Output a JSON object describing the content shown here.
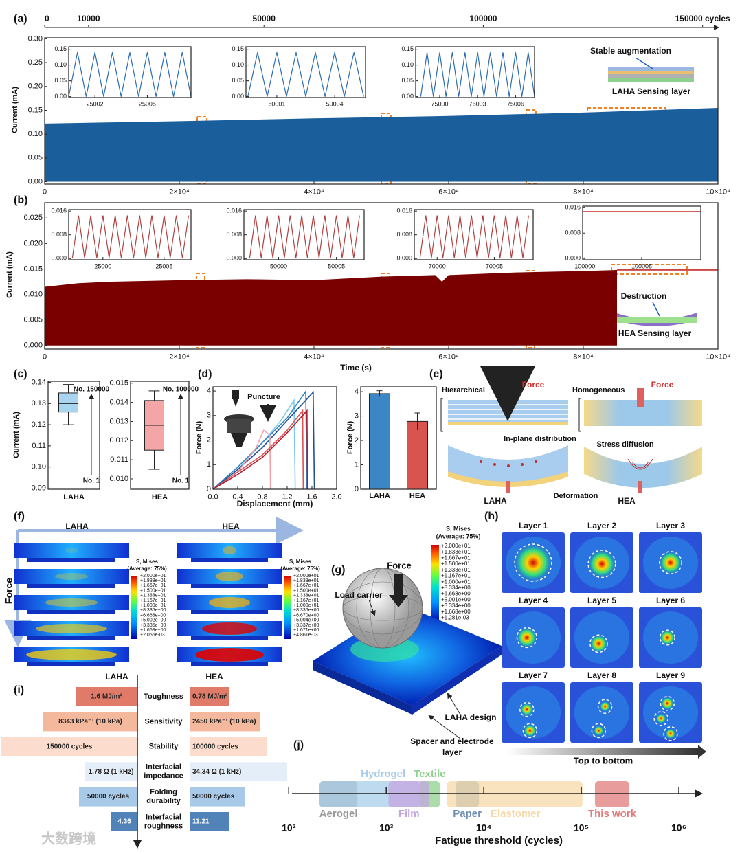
{
  "chart_data": [
    {
      "type": "area",
      "label": "(a)",
      "ylabel": "Current (mA)",
      "xlim": [
        0,
        100000
      ],
      "xticks": [
        0,
        {
          "value": 20000,
          "label": "2×10⁴"
        },
        {
          "value": 40000,
          "label": "4×10⁴"
        },
        {
          "value": 60000,
          "label": "6×10⁴"
        },
        {
          "value": 80000,
          "label": "8×10⁴"
        },
        {
          "value": 100000,
          "label": "10×10⁴"
        }
      ],
      "x2lim": [
        0,
        153500
      ],
      "x2ticks": [
        0,
        10000,
        50000,
        100000,
        {
          "value": 150000,
          "label": "150000 cycles"
        }
      ],
      "ylim": [
        -0.005,
        0.302
      ],
      "yticks": [
        {
          "value": 0,
          "label": "0.00"
        },
        0.05,
        {
          "value": 0.1,
          "label": "0.10"
        },
        0.15,
        {
          "value": 0.2,
          "label": "0.20"
        },
        0.25,
        {
          "value": 0.3,
          "label": "0.30"
        }
      ],
      "series": [
        {
          "color": "#1b5e9c",
          "x": [
            0,
            20000,
            40000,
            60000,
            80000,
            100000
          ],
          "values": [
            0.122,
            0.127,
            0.133,
            0.138,
            0.145,
            0.155
          ]
        }
      ],
      "annotations": [
        "Stable augmentation",
        "LAHA Sensing layer"
      ]
    },
    {
      "type": "area",
      "label": "(b)",
      "ylabel": "Current (mA)",
      "xlabel": "Time (s)",
      "xlim": [
        0,
        100000
      ],
      "xticks": [
        0,
        {
          "value": 20000,
          "label": "2×10⁴"
        },
        {
          "value": 40000,
          "label": "4×10⁴"
        },
        {
          "value": 60000,
          "label": "6×10⁴"
        },
        {
          "value": 80000,
          "label": "8×10⁴"
        },
        {
          "value": 100000,
          "label": "10×10⁴"
        }
      ],
      "ylim": [
        -0.0007,
        0.028
      ],
      "yticks": [
        {
          "value": 0,
          "label": "0.000"
        },
        0.005,
        {
          "value": 0.01,
          "label": "0.010"
        },
        0.015,
        {
          "value": 0.02,
          "label": "0.020"
        },
        0.025
      ],
      "series": [
        {
          "color": "#7a0000",
          "x": [
            0,
            5000,
            10000,
            20000,
            30000,
            40000,
            50000,
            58000,
            59000,
            60000,
            70000,
            80000,
            85000
          ],
          "values": [
            0.0115,
            0.0122,
            0.0125,
            0.0128,
            0.013,
            0.0128,
            0.0135,
            0.0138,
            0.0125,
            0.0138,
            0.0143,
            0.0146,
            0.0148
          ]
        },
        {
          "color": "#c62828",
          "style": "line",
          "x": [
            85000,
            100000
          ],
          "values": [
            0.0148,
            0.0148
          ]
        }
      ],
      "annotations": [
        "Destruction",
        "HEA Sensing layer"
      ]
    },
    {
      "type": "line",
      "xlim": [
        25000.5,
        25007.5
      ],
      "xticks": [
        25002,
        25005
      ],
      "ylim": [
        -0.003,
        0.158
      ],
      "yticks": [
        {
          "value": 0,
          "label": "0.00"
        },
        0.05,
        {
          "value": 0.1,
          "label": "0.10"
        },
        0.15
      ],
      "series": [
        {
          "color": "#2b6cb0",
          "x": [
            25000.5,
            25001,
            25001.5,
            25002,
            25002.5,
            25003,
            25003.5,
            25004,
            25004.5,
            25005,
            25005.5,
            25006,
            25006.5,
            25007,
            25007.5
          ],
          "values": [
            0,
            0.14,
            0,
            0.14,
            0,
            0.14,
            0,
            0.14,
            0,
            0.14,
            0,
            0.14,
            0,
            0.14,
            0
          ]
        }
      ]
    },
    {
      "type": "line",
      "xlim": [
        49999.4,
        50005.6
      ],
      "xticks": [
        50001,
        50004
      ],
      "ylim": [
        -0.003,
        0.158
      ],
      "yticks": [
        {
          "value": 0,
          "label": "0.00"
        },
        0.05,
        {
          "value": 0.1,
          "label": "0.10"
        },
        0.15
      ],
      "series": [
        {
          "color": "#2b6cb0",
          "x": [
            49999.5,
            50000,
            50000.5,
            50001,
            50001.5,
            50002,
            50002.5,
            50003,
            50003.5,
            50004,
            50004.5,
            50005,
            50005.5
          ],
          "values": [
            0,
            0.14,
            0,
            0.14,
            0,
            0.14,
            0,
            0.14,
            0,
            0.14,
            0,
            0.14,
            0
          ]
        }
      ]
    },
    {
      "type": "line",
      "xlim": [
        74998.1,
        75007.5
      ],
      "xticks": [
        75000,
        75003,
        75006
      ],
      "ylim": [
        -0.003,
        0.158
      ],
      "yticks": [
        {
          "value": 0,
          "label": "0.00"
        },
        0.05,
        {
          "value": 0.1,
          "label": "0.10"
        },
        0.15
      ],
      "series": [
        {
          "color": "#2b6cb0",
          "x": [
            74998.5,
            74999,
            74999.5,
            75000,
            75000.5,
            75001,
            75001.5,
            75002,
            75002.5,
            75003,
            75003.5,
            75004,
            75004.5,
            75005,
            75005.5,
            75006,
            75006.5,
            75007,
            75007.5
          ],
          "values": [
            0,
            0.14,
            0,
            0.14,
            0,
            0.14,
            0,
            0.14,
            0,
            0.14,
            0,
            0.14,
            0,
            0.14,
            0,
            0.14,
            0,
            0.14,
            0
          ]
        }
      ]
    },
    {
      "type": "line",
      "xlim": [
        24997.2,
        25007.2
      ],
      "xticks": [
        25000,
        25005
      ],
      "ylim": [
        -0.0004,
        0.0165
      ],
      "yticks": [
        {
          "value": 0,
          "label": "0.000"
        },
        0.008,
        0.016
      ],
      "series": [
        {
          "color": "#b04040",
          "x": [
            24997.5,
            24998,
            24998.5,
            24999,
            24999.5,
            25000,
            25000.5,
            25001,
            25001.5,
            25002,
            25002.5,
            25003,
            25003.5,
            25004,
            25004.5,
            25005,
            25005.5,
            25006,
            25006.5,
            25007
          ],
          "values": [
            0.0002,
            0.0145,
            0.0002,
            0.0145,
            0.0002,
            0.0145,
            0.0002,
            0.0145,
            0.0002,
            0.0145,
            0.0002,
            0.0145,
            0.0002,
            0.0145,
            0.0002,
            0.0145,
            0.0002,
            0.0145,
            0.0002,
            0.0145
          ]
        }
      ]
    },
    {
      "type": "line",
      "xlim": [
        49997,
        50007.4
      ],
      "xticks": [
        50000,
        50005
      ],
      "ylim": [
        -0.0004,
        0.0165
      ],
      "yticks": [
        {
          "value": 0,
          "label": "0.000"
        },
        0.008,
        0.016
      ],
      "series": [
        {
          "color": "#b04040",
          "x": [
            49997.5,
            49998,
            49998.5,
            49999,
            49999.5,
            50000,
            50000.5,
            50001,
            50001.5,
            50002,
            50002.5,
            50003,
            50003.5,
            50004,
            50004.5,
            50005,
            50005.5,
            50006,
            50006.5,
            50007
          ],
          "values": [
            0.0002,
            0.0145,
            0.0002,
            0.0145,
            0.0002,
            0.0145,
            0.0002,
            0.0145,
            0.0002,
            0.0145,
            0.0002,
            0.0145,
            0.0002,
            0.0145,
            0.0002,
            0.0145,
            0.0002,
            0.0145,
            0.0002,
            0.0145
          ]
        }
      ]
    },
    {
      "type": "line",
      "xlim": [
        69998,
        70008.4
      ],
      "xticks": [
        70000,
        70005
      ],
      "ylim": [
        -0.0004,
        0.0165
      ],
      "yticks": [
        {
          "value": 0,
          "label": "0.000"
        },
        0.008,
        0.016
      ],
      "series": [
        {
          "color": "#b04040",
          "x": [
            69998.5,
            69999,
            69999.5,
            70000,
            70000.5,
            70001,
            70001.5,
            70002,
            70002.5,
            70003,
            70003.5,
            70004,
            70004.5,
            70005,
            70005.5,
            70006,
            70006.5,
            70007,
            70007.5,
            70008
          ],
          "values": [
            0.0002,
            0.0145,
            0.0002,
            0.0145,
            0.0002,
            0.0145,
            0.0002,
            0.0145,
            0.0002,
            0.0145,
            0.0002,
            0.0145,
            0.0002,
            0.0145,
            0.0002,
            0.0145,
            0.0002,
            0.0145,
            0.0002,
            0.0145
          ]
        }
      ]
    },
    {
      "type": "line",
      "xlim": [
        99999.8,
        100010.2
      ],
      "xticks": [
        100000,
        100005
      ],
      "ylim": [
        -0.0004,
        0.0165
      ],
      "yticks": [
        {
          "value": 0,
          "label": "0.000"
        },
        0.008,
        0.016
      ],
      "series": [
        {
          "color": "#c62828",
          "x": [
            99999.8,
            100010.2
          ],
          "values": [
            0.0148,
            0.0148
          ]
        }
      ]
    },
    {
      "type": "box",
      "label": "(c)",
      "ylabel": "Current (mA)",
      "category": "LAHA",
      "color": "#a8d4f0",
      "ylim": [
        0.0895,
        0.1405
      ],
      "yticks": [
        0.09,
        {
          "value": 0.1,
          "label": "0.10"
        },
        0.11,
        0.12,
        0.13,
        0.14
      ],
      "whisker_low": 0.12,
      "q1": 0.126,
      "median": 0.13,
      "q3": 0.135,
      "whisker_high": 0.139,
      "annotations": [
        "No. 150000",
        "No. 1"
      ]
    },
    {
      "type": "box",
      "category": "HEA",
      "color": "#f4a6a6",
      "ylim": [
        0.00946,
        0.0151
      ],
      "yticks": [
        {
          "value": 0.01,
          "label": "0.010"
        },
        0.011,
        0.012,
        0.013,
        0.014,
        0.015
      ],
      "whisker_low": 0.0105,
      "q1": 0.0115,
      "median": 0.0128,
      "q3": 0.0141,
      "whisker_high": 0.0146,
      "annotations": [
        "No. 100000",
        "No. 1"
      ]
    },
    {
      "type": "line",
      "label": "(d)",
      "xlabel": "Displacement (mm)",
      "ylabel": "Force (N)",
      "annotation": "Puncture",
      "xlim": [
        0,
        2.0
      ],
      "xticks": [
        {
          "value": 0,
          "label": "0.0"
        },
        0.4,
        0.8,
        1.2,
        1.6,
        {
          "value": 2,
          "label": "2.0"
        }
      ],
      "ylim": [
        0,
        4.17
      ],
      "yticks": [
        0,
        1,
        2,
        3,
        4
      ],
      "series": [
        {
          "color": "#7ec8ec",
          "x": [
            0,
            0.4,
            0.8,
            1.1,
            1.31,
            1.33
          ],
          "values": [
            0,
            0.8,
            1.9,
            2.8,
            3.62,
            0
          ]
        },
        {
          "color": "#2f86c8",
          "x": [
            0,
            0.4,
            0.8,
            1.2,
            1.5,
            1.52
          ],
          "values": [
            0,
            0.9,
            1.9,
            2.9,
            3.98,
            0
          ]
        },
        {
          "color": "#1f4f9a",
          "x": [
            0,
            0.4,
            0.8,
            1.2,
            1.62,
            1.64
          ],
          "values": [
            0,
            0.8,
            1.7,
            2.8,
            3.95,
            0
          ]
        },
        {
          "color": "#f2a0a8",
          "x": [
            0,
            0.4,
            0.7,
            0.82,
            0.92,
            0.93
          ],
          "values": [
            0,
            0.7,
            1.7,
            2.4,
            2.2,
            0
          ]
        },
        {
          "color": "#e05050",
          "x": [
            0,
            0.4,
            0.8,
            1.2,
            1.45,
            1.46
          ],
          "values": [
            0,
            0.7,
            1.4,
            2.4,
            3.2,
            0
          ]
        },
        {
          "color": "#b01c2e",
          "x": [
            0,
            0.4,
            0.8,
            1.2,
            1.52,
            1.53
          ],
          "values": [
            0,
            0.6,
            1.3,
            2.3,
            3.2,
            0
          ]
        }
      ]
    },
    {
      "type": "bar",
      "ylabel": "Force (N)",
      "categories": [
        "LAHA",
        "HEA"
      ],
      "values": [
        3.92,
        2.78
      ],
      "errors": [
        0.12,
        0.35
      ],
      "colors": [
        "#3d86c6",
        "#d9534f"
      ],
      "ylim": [
        0,
        4.2
      ],
      "yticks": [
        0,
        1,
        2,
        3,
        4
      ]
    },
    {
      "type": "range",
      "label": "(j)",
      "xlabel": "Fatigue threshold (cycles)",
      "log": true,
      "xlim": [
        108,
        1680000
      ],
      "xticks": [
        {
          "value": 100,
          "label": "10²"
        },
        {
          "value": 1000,
          "label": "10³"
        },
        {
          "value": 10000,
          "label": "10⁴"
        },
        {
          "value": 100000,
          "label": "10⁵"
        },
        {
          "value": 1000000,
          "label": "10⁶"
        }
      ],
      "categories": [
        "Aerogel",
        "Hydrogel",
        "Textile",
        "Film",
        "Paper",
        "Elastomer",
        "This work"
      ],
      "start": [
        207,
        207,
        2180,
        1055,
        5140,
        4170,
        138000
      ],
      "end": [
        506,
        2180,
        3550,
        2770,
        8930,
        103000,
        311000
      ],
      "colors": [
        "#9a9a9a",
        "#a8cde8",
        "#8fd18f",
        "#c3a6e0",
        "#6f8fb5",
        "#f6d9a8",
        "#e07b7b"
      ]
    }
  ],
  "panels": {
    "e": {
      "label": "(e)",
      "hierarchical": "Hierarchical",
      "homogeneous": "Homogeneous",
      "force_left": "Force",
      "force_right": "Force",
      "in_plane": "In-plane distribution",
      "stress": "Stress diffusion",
      "laha": "LAHA",
      "deformation": "Deformation",
      "hea": "HEA"
    },
    "f": {
      "label": "(f)",
      "laha": "LAHA",
      "hea": "HEA",
      "force": "Force",
      "legend_left": {
        "title": "S, Mises",
        "subtitle": "(Average: 75%)",
        "levels": [
          "+2.000e+01",
          "+1.833e+01",
          "+1.667e+01",
          "+1.500e+01",
          "+1.333e+01",
          "+1.167e+01",
          "+1.000e+01",
          "+8.335e+00",
          "+6.668e+00",
          "+5.002e+00",
          "+3.335e+00",
          "+1.669e+00",
          "+2.056e-03"
        ]
      },
      "legend_right": {
        "title": "S, Mises",
        "subtitle": "(Average: 75%)",
        "levels": [
          "+2.000e+01",
          "+1.833e+01",
          "+1.667e+01",
          "+1.500e+01",
          "+1.333e+01",
          "+1.167e+01",
          "+1.000e+01",
          "+8.336e+00",
          "+6.670e+00",
          "+5.004e+00",
          "+3.337e+00",
          "+1.671e+00",
          "+4.861e-03"
        ]
      }
    },
    "g": {
      "label": "(g)",
      "force": "Force",
      "load": "Load carrier",
      "design": "LAHA design",
      "spacer": [
        "Spacer and electrode",
        "layer"
      ],
      "legend": {
        "title": "S, Mises",
        "subtitle": "(Average: 75%)",
        "levels": [
          "+2.000e+01",
          "+1.833e+01",
          "+1.667e+01",
          "+1.500e+01",
          "+1.333e+01",
          "+1.167e+01",
          "+1.000e+01",
          "+8.334e+00",
          "+6.668e+00",
          "+5.001e+00",
          "+3.334e+00",
          "+1.668e+00",
          "+1.281e-03"
        ]
      }
    },
    "h": {
      "label": "(h)",
      "layers": [
        "Layer 1",
        "Layer 2",
        "Layer 3",
        "Layer 4",
        "Layer 5",
        "Layer 6",
        "Layer 7",
        "Layer 8",
        "Layer 9"
      ],
      "direction": "Top to bottom"
    },
    "i": {
      "label": "(i)",
      "left": "LAHA",
      "right": "HEA",
      "rows": [
        {
          "name": [
            "Toughness"
          ],
          "left": "1.6 MJ/m³",
          "right": "0.78 MJ/m³",
          "color": "#e07b6a"
        },
        {
          "name": [
            "Sensitivity"
          ],
          "left": "8343 kPa⁻¹ (10 kPa)",
          "right": "2450 kPa⁻¹ (10 kPa)",
          "color": "#f4b89c"
        },
        {
          "name": [
            "Stability"
          ],
          "left": "150000 cycles",
          "right": "100000 cycles",
          "color": "#fbdccd"
        },
        {
          "name": [
            "Interfacial",
            "impedance"
          ],
          "left": "1.78 Ω (1 kHz)",
          "right": "34.34 Ω (1 kHz)",
          "color": "#e4eef8"
        },
        {
          "name": [
            "Folding",
            "durability"
          ],
          "left": "50000 cycles",
          "right": "50000 cycles",
          "color": "#a9c9e8"
        },
        {
          "name": [
            "Interfacial",
            "roughness"
          ],
          "left": "4.36",
          "right": "11.21",
          "color": "#5283b8"
        }
      ]
    },
    "watermark": "大数跨境"
  }
}
